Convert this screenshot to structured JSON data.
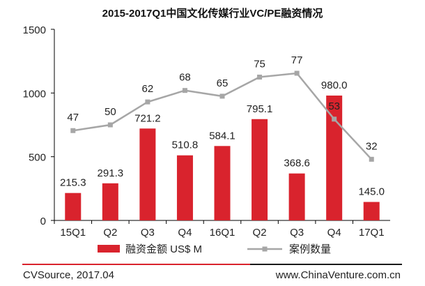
{
  "chart_data": {
    "type": "bar",
    "title": "2015-2017Q1中国文化传媒行业VC/PE融资情况",
    "categories": [
      "15Q1",
      "Q2",
      "Q3",
      "Q4",
      "16Q1",
      "Q2",
      "Q3",
      "Q4",
      "17Q1"
    ],
    "ylim": [
      0,
      1500
    ],
    "yticks": [
      0,
      500,
      1000,
      1500
    ],
    "series": [
      {
        "name": "融资金额 US$ M",
        "type": "bar",
        "color": "#d9232d",
        "values": [
          215.3,
          291.3,
          721.2,
          510.8,
          584.1,
          795.1,
          368.6,
          980.0,
          145.0
        ],
        "labels": [
          "215.3",
          "291.3",
          "721.2",
          "510.8",
          "584.1",
          "795.1",
          "368.6",
          "980.0",
          "145.0"
        ]
      },
      {
        "name": "案例数量",
        "type": "line",
        "color": "#a6a6a6",
        "values": [
          47,
          50,
          62,
          68,
          65,
          75,
          77,
          53,
          32
        ],
        "labels": [
          "47",
          "50",
          "62",
          "68",
          "65",
          "75",
          "77",
          "53",
          "32"
        ]
      }
    ],
    "legend": "bottom",
    "grid": false
  },
  "footer": {
    "source": "CVSource, 2017.04",
    "website": "www.ChinaVenture.com.cn"
  }
}
